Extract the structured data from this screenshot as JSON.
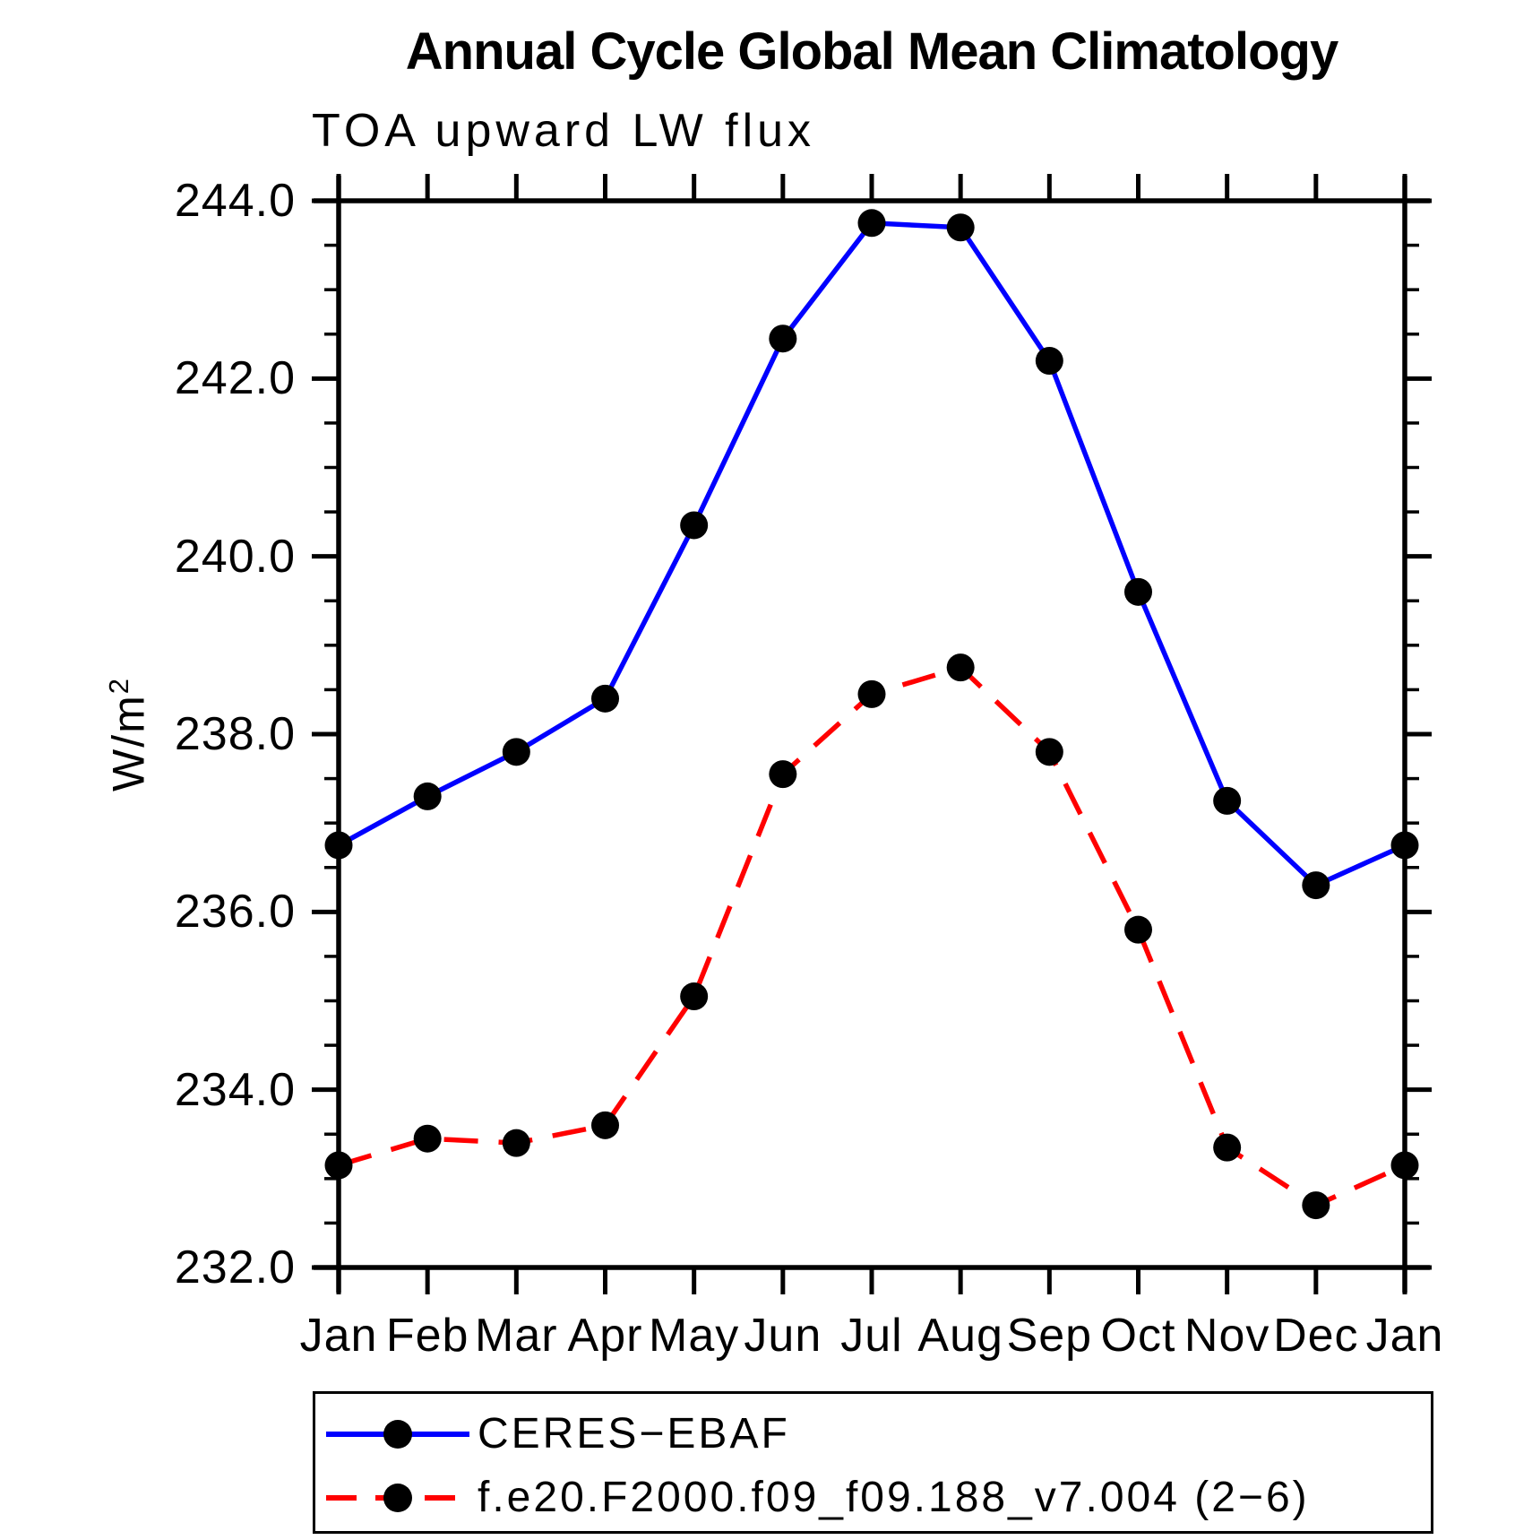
{
  "page": {
    "background": "#ffffff"
  },
  "header": {
    "title": "Annual Cycle Global Mean Climatology",
    "subtitle": "TOA upward LW flux"
  },
  "chart_data": {
    "type": "line",
    "title": "Annual Cycle Global Mean Climatology",
    "subtitle": "TOA upward LW flux",
    "xlabel": "",
    "ylabel": "W/m²",
    "ylabel_parts": {
      "base": "W/m",
      "sup": "2"
    },
    "categories": [
      "Jan",
      "Feb",
      "Mar",
      "Apr",
      "May",
      "Jun",
      "Jul",
      "Aug",
      "Sep",
      "Oct",
      "Nov",
      "Dec",
      "Jan"
    ],
    "series": [
      {
        "name": "CERES−EBAF",
        "line_color": "#0000ff",
        "line_style": "solid",
        "marker": "circle",
        "marker_color": "#000000",
        "values": [
          236.75,
          237.3,
          237.8,
          238.4,
          240.35,
          242.45,
          243.75,
          243.7,
          242.2,
          239.6,
          237.25,
          236.3,
          236.75
        ]
      },
      {
        "name": "f.e20.F2000.f09_f09.188_v7.004 (2−6)",
        "line_color": "#ff0000",
        "line_style": "dashed",
        "marker": "circle",
        "marker_color": "#000000",
        "values": [
          233.15,
          233.45,
          233.4,
          233.6,
          235.05,
          237.55,
          238.45,
          238.75,
          237.8,
          235.8,
          233.35,
          232.7,
          233.15
        ]
      }
    ],
    "ylim": [
      232.0,
      244.0
    ],
    "ytick_step": 2.0,
    "ytick_minor_step": 0.5,
    "ytick_labels": [
      "232.0",
      "234.0",
      "236.0",
      "238.0",
      "240.0",
      "242.0",
      "244.0"
    ],
    "grid": false,
    "legend_position": "bottom"
  },
  "legend": {
    "entries": [
      {
        "label": "CERES−EBAF"
      },
      {
        "label": "f.e20.F2000.f09_f09.188_v7.004 (2−6)"
      }
    ]
  }
}
